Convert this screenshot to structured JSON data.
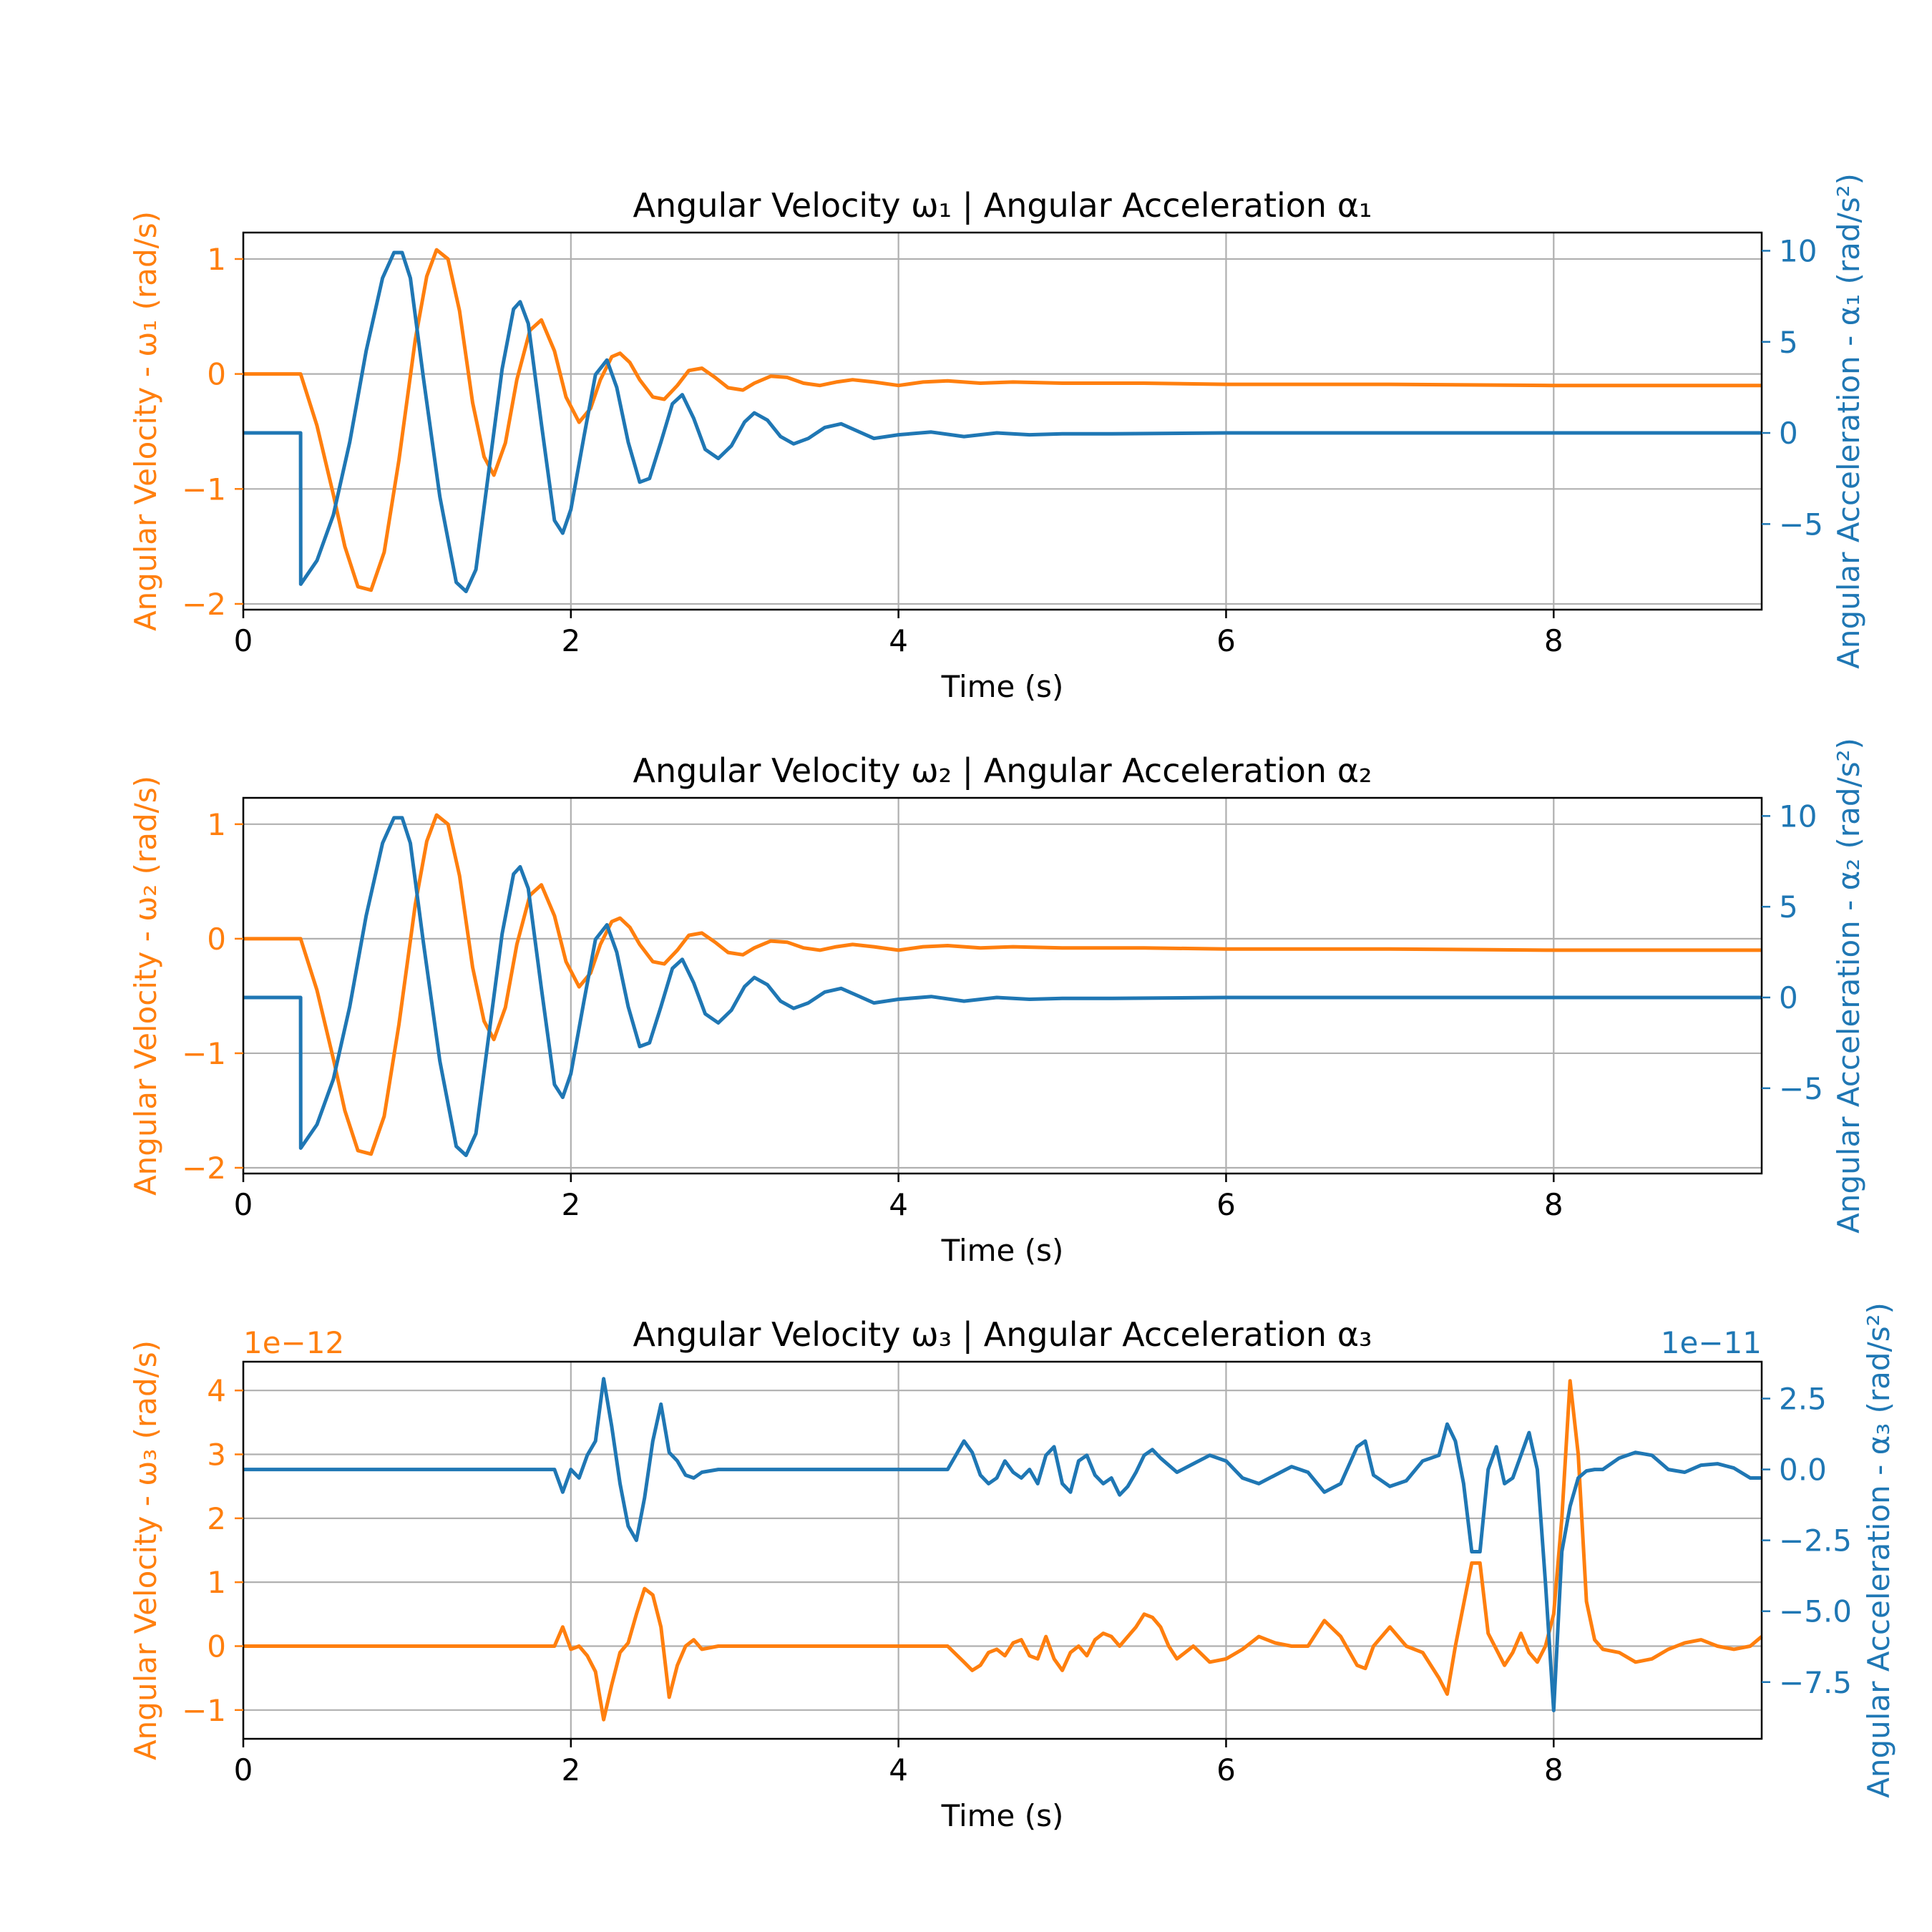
{
  "colors": {
    "omega": "#ff7f0e",
    "alpha": "#1f77b4",
    "grid": "#b0b0b0",
    "axis": "#000000"
  },
  "chart_data": [
    {
      "type": "line",
      "title": "Angular Velocity ω₁ | Angular Acceleration α₁",
      "xlabel": "Time (s)",
      "ylabel_left": "Angular Velocity - ω₁ (rad/s)",
      "ylabel_right": "Angular Acceleration - α₁ (rad/s²)",
      "xlim": [
        0,
        9.27
      ],
      "ylim_left": [
        -2.05,
        1.23
      ],
      "ylim_right": [
        -9.7,
        11.0
      ],
      "xticks": [
        0,
        2,
        4,
        6,
        8
      ],
      "xtick_labels": [
        "0",
        "2",
        "4",
        "6",
        "8"
      ],
      "yticks_left": [
        -2,
        -1,
        0,
        1
      ],
      "ytick_labels_left": [
        "−2",
        "−1",
        "0",
        "1"
      ],
      "yticks_right": [
        -5,
        0,
        5,
        10
      ],
      "ytick_labels_right": [
        "−5",
        "0",
        "5",
        "10"
      ],
      "offset_left": "",
      "offset_right": "",
      "grid": true,
      "series": [
        {
          "axis": "left",
          "x": [
            0,
            0.35,
            0.45,
            0.55,
            0.62,
            0.7,
            0.78,
            0.86,
            0.95,
            1.05,
            1.12,
            1.18,
            1.25,
            1.32,
            1.4,
            1.47,
            1.53,
            1.6,
            1.67,
            1.75,
            1.82,
            1.9,
            1.97,
            2.05,
            2.12,
            2.18,
            2.25,
            2.3,
            2.36,
            2.42,
            2.5,
            2.57,
            2.65,
            2.72,
            2.8,
            2.88,
            2.96,
            3.05,
            3.12,
            3.22,
            3.32,
            3.42,
            3.52,
            3.62,
            3.72,
            3.85,
            4.0,
            4.15,
            4.3,
            4.5,
            4.7,
            5.0,
            5.5,
            6.0,
            7.0,
            8.0,
            9.27
          ],
          "y": [
            0,
            0,
            -0.45,
            -1.05,
            -1.5,
            -1.85,
            -1.88,
            -1.55,
            -0.75,
            0.3,
            0.85,
            1.08,
            1.0,
            0.55,
            -0.25,
            -0.72,
            -0.88,
            -0.6,
            -0.05,
            0.38,
            0.47,
            0.2,
            -0.2,
            -0.42,
            -0.3,
            -0.05,
            0.15,
            0.18,
            0.1,
            -0.05,
            -0.2,
            -0.22,
            -0.1,
            0.03,
            0.05,
            -0.03,
            -0.12,
            -0.14,
            -0.08,
            -0.02,
            -0.03,
            -0.08,
            -0.1,
            -0.07,
            -0.05,
            -0.07,
            -0.1,
            -0.07,
            -0.06,
            -0.08,
            -0.07,
            -0.08,
            -0.08,
            -0.09,
            -0.09,
            -0.1,
            -0.1
          ]
        },
        {
          "axis": "right",
          "x": [
            0,
            0.35,
            0.351,
            0.45,
            0.55,
            0.65,
            0.75,
            0.85,
            0.92,
            0.97,
            1.02,
            1.1,
            1.2,
            1.3,
            1.36,
            1.42,
            1.5,
            1.58,
            1.65,
            1.69,
            1.74,
            1.82,
            1.9,
            1.95,
            2.0,
            2.08,
            2.15,
            2.22,
            2.28,
            2.35,
            2.42,
            2.48,
            2.55,
            2.62,
            2.68,
            2.75,
            2.82,
            2.9,
            2.98,
            3.06,
            3.12,
            3.2,
            3.28,
            3.36,
            3.45,
            3.55,
            3.65,
            3.75,
            3.85,
            4.0,
            4.2,
            4.4,
            4.6,
            4.8,
            5.0,
            5.3,
            6.0,
            7.0,
            8.0,
            9.27
          ],
          "y": [
            0,
            0,
            -8.3,
            -7.0,
            -4.5,
            -0.5,
            4.5,
            8.5,
            9.9,
            9.9,
            8.5,
            3.0,
            -3.5,
            -8.2,
            -8.7,
            -7.5,
            -2.0,
            3.5,
            6.8,
            7.2,
            6.0,
            0.5,
            -4.8,
            -5.5,
            -4.2,
            -0.2,
            3.2,
            4.0,
            2.5,
            -0.5,
            -2.7,
            -2.5,
            -0.5,
            1.6,
            2.1,
            0.8,
            -0.9,
            -1.4,
            -0.7,
            0.6,
            1.1,
            0.7,
            -0.2,
            -0.6,
            -0.3,
            0.3,
            0.5,
            0.1,
            -0.3,
            -0.1,
            0.05,
            -0.2,
            0.0,
            -0.1,
            -0.05,
            -0.05,
            0.0,
            0.0,
            0.0,
            0.0
          ]
        }
      ]
    },
    {
      "type": "line",
      "title": "Angular Velocity ω₂ | Angular Acceleration α₂",
      "xlabel": "Time (s)",
      "ylabel_left": "Angular Velocity - ω₂ (rad/s)",
      "ylabel_right": "Angular Acceleration - α₂ (rad/s²)",
      "xlim": [
        0,
        9.27
      ],
      "ylim_left": [
        -2.05,
        1.23
      ],
      "ylim_right": [
        -9.7,
        11.0
      ],
      "xticks": [
        0,
        2,
        4,
        6,
        8
      ],
      "xtick_labels": [
        "0",
        "2",
        "4",
        "6",
        "8"
      ],
      "yticks_left": [
        -2,
        -1,
        0,
        1
      ],
      "ytick_labels_left": [
        "−2",
        "−1",
        "0",
        "1"
      ],
      "yticks_right": [
        -5,
        0,
        5,
        10
      ],
      "ytick_labels_right": [
        "−5",
        "0",
        "5",
        "10"
      ],
      "offset_left": "",
      "offset_right": "",
      "grid": true,
      "series": [
        {
          "axis": "left",
          "x": [
            0,
            0.35,
            0.45,
            0.55,
            0.62,
            0.7,
            0.78,
            0.86,
            0.95,
            1.05,
            1.12,
            1.18,
            1.25,
            1.32,
            1.4,
            1.47,
            1.53,
            1.6,
            1.67,
            1.75,
            1.82,
            1.9,
            1.97,
            2.05,
            2.12,
            2.18,
            2.25,
            2.3,
            2.36,
            2.42,
            2.5,
            2.57,
            2.65,
            2.72,
            2.8,
            2.88,
            2.96,
            3.05,
            3.12,
            3.22,
            3.32,
            3.42,
            3.52,
            3.62,
            3.72,
            3.85,
            4.0,
            4.15,
            4.3,
            4.5,
            4.7,
            5.0,
            5.5,
            6.0,
            7.0,
            8.0,
            9.27
          ],
          "y": [
            0,
            0,
            -0.45,
            -1.05,
            -1.5,
            -1.85,
            -1.88,
            -1.55,
            -0.75,
            0.3,
            0.85,
            1.08,
            1.0,
            0.55,
            -0.25,
            -0.72,
            -0.88,
            -0.6,
            -0.05,
            0.38,
            0.47,
            0.2,
            -0.2,
            -0.42,
            -0.3,
            -0.05,
            0.15,
            0.18,
            0.1,
            -0.05,
            -0.2,
            -0.22,
            -0.1,
            0.03,
            0.05,
            -0.03,
            -0.12,
            -0.14,
            -0.08,
            -0.02,
            -0.03,
            -0.08,
            -0.1,
            -0.07,
            -0.05,
            -0.07,
            -0.1,
            -0.07,
            -0.06,
            -0.08,
            -0.07,
            -0.08,
            -0.08,
            -0.09,
            -0.09,
            -0.1,
            -0.1
          ]
        },
        {
          "axis": "right",
          "x": [
            0,
            0.35,
            0.351,
            0.45,
            0.55,
            0.65,
            0.75,
            0.85,
            0.92,
            0.97,
            1.02,
            1.1,
            1.2,
            1.3,
            1.36,
            1.42,
            1.5,
            1.58,
            1.65,
            1.69,
            1.74,
            1.82,
            1.9,
            1.95,
            2.0,
            2.08,
            2.15,
            2.22,
            2.28,
            2.35,
            2.42,
            2.48,
            2.55,
            2.62,
            2.68,
            2.75,
            2.82,
            2.9,
            2.98,
            3.06,
            3.12,
            3.2,
            3.28,
            3.36,
            3.45,
            3.55,
            3.65,
            3.75,
            3.85,
            4.0,
            4.2,
            4.4,
            4.6,
            4.8,
            5.0,
            5.3,
            6.0,
            7.0,
            8.0,
            9.27
          ],
          "y": [
            0,
            0,
            -8.3,
            -7.0,
            -4.5,
            -0.5,
            4.5,
            8.5,
            9.9,
            9.9,
            8.5,
            3.0,
            -3.5,
            -8.2,
            -8.7,
            -7.5,
            -2.0,
            3.5,
            6.8,
            7.2,
            6.0,
            0.5,
            -4.8,
            -5.5,
            -4.2,
            -0.2,
            3.2,
            4.0,
            2.5,
            -0.5,
            -2.7,
            -2.5,
            -0.5,
            1.6,
            2.1,
            0.8,
            -0.9,
            -1.4,
            -0.7,
            0.6,
            1.1,
            0.7,
            -0.2,
            -0.6,
            -0.3,
            0.3,
            0.5,
            0.1,
            -0.3,
            -0.1,
            0.05,
            -0.2,
            0.0,
            -0.1,
            -0.05,
            -0.05,
            0.0,
            0.0,
            0.0,
            0.0
          ]
        }
      ]
    },
    {
      "type": "line",
      "title": "Angular Velocity ω₃ | Angular Acceleration α₃",
      "xlabel": "Time (s)",
      "ylabel_left": "Angular Velocity - ω₃ (rad/s)",
      "ylabel_right": "Angular Acceleration - α₃ (rad/s²)",
      "xlim": [
        0,
        9.27
      ],
      "ylim_left": [
        -1.45,
        4.45
      ],
      "ylim_right": [
        -9.5,
        3.8
      ],
      "xticks": [
        0,
        2,
        4,
        6,
        8
      ],
      "xtick_labels": [
        "0",
        "2",
        "4",
        "6",
        "8"
      ],
      "yticks_left": [
        -1,
        0,
        1,
        2,
        3,
        4
      ],
      "ytick_labels_left": [
        "−1",
        "0",
        "1",
        "2",
        "3",
        "4"
      ],
      "yticks_right": [
        -7.5,
        -5.0,
        -2.5,
        0.0,
        2.5
      ],
      "ytick_labels_right": [
        "−7.5",
        "−5.0",
        "−2.5",
        "0.0",
        "2.5"
      ],
      "offset_left": "1e−12",
      "offset_right": "1e−11",
      "grid": true,
      "series": [
        {
          "axis": "left",
          "x": [
            0,
            1.9,
            1.95,
            2.0,
            2.05,
            2.1,
            2.15,
            2.2,
            2.25,
            2.3,
            2.35,
            2.4,
            2.45,
            2.5,
            2.55,
            2.6,
            2.65,
            2.7,
            2.75,
            2.8,
            2.9,
            3.0,
            3.2,
            3.5,
            4.0,
            4.3,
            4.4,
            4.45,
            4.5,
            4.55,
            4.6,
            4.65,
            4.7,
            4.75,
            4.8,
            4.85,
            4.9,
            4.95,
            5.0,
            5.05,
            5.1,
            5.15,
            5.2,
            5.25,
            5.3,
            5.35,
            5.4,
            5.45,
            5.5,
            5.55,
            5.6,
            5.65,
            5.7,
            5.8,
            5.9,
            6.0,
            6.1,
            6.2,
            6.3,
            6.4,
            6.5,
            6.6,
            6.7,
            6.8,
            6.85,
            6.9,
            7.0,
            7.1,
            7.2,
            7.3,
            7.35,
            7.4,
            7.5,
            7.55,
            7.6,
            7.7,
            7.75,
            7.8,
            7.85,
            7.9,
            7.95,
            8.0,
            8.05,
            8.1,
            8.15,
            8.2,
            8.25,
            8.3,
            8.4,
            8.5,
            8.6,
            8.7,
            8.8,
            8.9,
            9.0,
            9.1,
            9.2,
            9.27
          ],
          "y": [
            0,
            0,
            0.3,
            -0.05,
            0.0,
            -0.15,
            -0.4,
            -1.15,
            -0.6,
            -0.1,
            0.05,
            0.5,
            0.9,
            0.8,
            0.3,
            -0.8,
            -0.3,
            0.0,
            0.1,
            -0.05,
            0.0,
            0.0,
            0.0,
            0.0,
            0.0,
            0.0,
            -0.25,
            -0.38,
            -0.3,
            -0.1,
            -0.05,
            -0.15,
            0.05,
            0.1,
            -0.15,
            -0.2,
            0.15,
            -0.2,
            -0.38,
            -0.1,
            0.0,
            -0.15,
            0.1,
            0.2,
            0.15,
            0.0,
            0.15,
            0.3,
            0.5,
            0.45,
            0.3,
            0.0,
            -0.2,
            0.0,
            -0.25,
            -0.2,
            -0.05,
            0.15,
            0.05,
            0.0,
            0.0,
            0.4,
            0.15,
            -0.3,
            -0.35,
            0.0,
            0.3,
            0.0,
            -0.1,
            -0.5,
            -0.75,
            0.0,
            1.3,
            1.3,
            0.2,
            -0.3,
            -0.1,
            0.2,
            -0.1,
            -0.25,
            0.0,
            0.5,
            2.0,
            4.15,
            3.0,
            0.7,
            0.1,
            -0.05,
            -0.1,
            -0.25,
            -0.2,
            -0.05,
            0.05,
            0.1,
            0.0,
            -0.05,
            0.0,
            0.15
          ]
        },
        {
          "axis": "right",
          "x": [
            0,
            1.9,
            1.95,
            2.0,
            2.05,
            2.1,
            2.15,
            2.2,
            2.25,
            2.3,
            2.35,
            2.4,
            2.45,
            2.5,
            2.55,
            2.6,
            2.65,
            2.7,
            2.75,
            2.8,
            2.9,
            3.0,
            3.2,
            3.5,
            4.0,
            4.3,
            4.35,
            4.4,
            4.45,
            4.5,
            4.55,
            4.6,
            4.65,
            4.7,
            4.75,
            4.8,
            4.85,
            4.9,
            4.95,
            5.0,
            5.05,
            5.1,
            5.15,
            5.2,
            5.25,
            5.3,
            5.35,
            5.4,
            5.45,
            5.5,
            5.55,
            5.6,
            5.7,
            5.8,
            5.9,
            6.0,
            6.1,
            6.2,
            6.3,
            6.4,
            6.5,
            6.6,
            6.7,
            6.8,
            6.85,
            6.9,
            7.0,
            7.1,
            7.2,
            7.3,
            7.35,
            7.4,
            7.45,
            7.5,
            7.55,
            7.6,
            7.65,
            7.7,
            7.75,
            7.8,
            7.85,
            7.9,
            7.95,
            8.0,
            8.05,
            8.1,
            8.15,
            8.2,
            8.25,
            8.3,
            8.4,
            8.5,
            8.6,
            8.7,
            8.8,
            8.9,
            9.0,
            9.1,
            9.2,
            9.27
          ],
          "y": [
            0,
            0,
            -0.8,
            0.0,
            -0.3,
            0.5,
            1.0,
            3.2,
            1.5,
            -0.5,
            -2.0,
            -2.5,
            -1.0,
            1.0,
            2.3,
            0.6,
            0.3,
            -0.2,
            -0.3,
            -0.1,
            0.0,
            0.0,
            0.0,
            0.0,
            0.0,
            0.0,
            0.5,
            1.0,
            0.6,
            -0.2,
            -0.5,
            -0.3,
            0.3,
            -0.1,
            -0.3,
            0.0,
            -0.5,
            0.5,
            0.8,
            -0.5,
            -0.8,
            0.3,
            0.5,
            -0.2,
            -0.5,
            -0.3,
            -0.9,
            -0.6,
            -0.1,
            0.5,
            0.7,
            0.4,
            -0.1,
            0.2,
            0.5,
            0.3,
            -0.3,
            -0.5,
            -0.2,
            0.1,
            -0.1,
            -0.8,
            -0.5,
            0.8,
            1.0,
            -0.2,
            -0.6,
            -0.4,
            0.3,
            0.5,
            1.6,
            1.0,
            -0.5,
            -2.9,
            -2.9,
            0.0,
            0.8,
            -0.5,
            -0.3,
            0.5,
            1.3,
            0.0,
            -4.0,
            -8.5,
            -2.9,
            -1.3,
            -0.3,
            -0.05,
            0.0,
            0.0,
            0.4,
            0.6,
            0.5,
            0.0,
            -0.1,
            0.15,
            0.2,
            0.05,
            -0.3,
            -0.3
          ]
        }
      ]
    }
  ]
}
